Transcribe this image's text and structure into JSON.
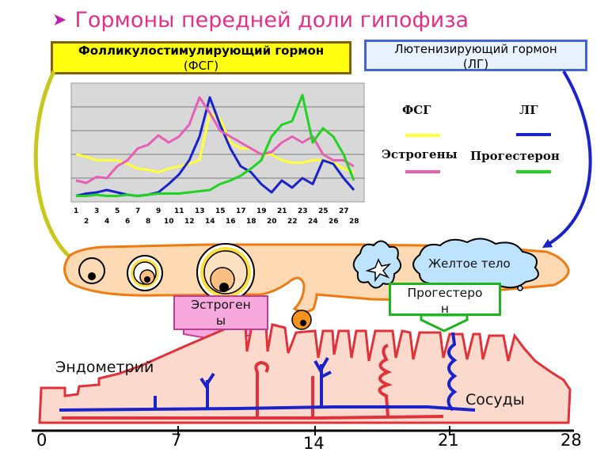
{
  "title": "Гормоны передней доли гипофиза",
  "boxes": {
    "fsh_line1": "Фолликулостимулирующий гормон",
    "fsh_line2": "(ФСГ)",
    "lh_line1": "Лютенизирующий гормон",
    "lh_line2": "(ЛГ)"
  },
  "legend": {
    "fsh": "ФСГ",
    "lh": "ЛГ",
    "estrogen": "Эстрогены",
    "progesterone": "Прогестерон"
  },
  "labels": {
    "corpus_luteum": "Желтое тело",
    "estrogen_box_line1": "Эстроген",
    "estrogen_box_line2": "ы",
    "progesterone_box_line1": "Прогестеро",
    "progesterone_box_line2": "н",
    "endometrium": "Эндометрий",
    "vessels": "Сосуды"
  },
  "timeline_days": [
    "0",
    "7",
    "14",
    "21",
    "28"
  ],
  "colors": {
    "fsh": "#ffff3a",
    "lh": "#1a23c9",
    "estrogen": "#e65fb4",
    "progesterone": "#20d320",
    "title": "#e0308a",
    "ovary_fill": "#fdd9b4",
    "ovary_stroke": "#f07a10",
    "endometrium_fill": "#fbd9cd",
    "endometrium_stroke": "#e0323a"
  },
  "chart_data": {
    "type": "line",
    "x_ticks_top": [
      "1",
      "3",
      "5",
      "7",
      "9",
      "11",
      "13",
      "15",
      "17",
      "19",
      "21",
      "23",
      "25",
      "27"
    ],
    "x_ticks_bottom": [
      "2",
      "4",
      "6",
      "8",
      "10",
      "12",
      "14",
      "16",
      "18",
      "20",
      "22",
      "24",
      "26",
      "28"
    ],
    "x": [
      1,
      2,
      3,
      4,
      5,
      6,
      7,
      8,
      9,
      10,
      11,
      12,
      13,
      14,
      15,
      16,
      17,
      18,
      19,
      20,
      21,
      22,
      23,
      24,
      25,
      26,
      27,
      28
    ],
    "grid": true,
    "ylim": [
      0,
      10
    ],
    "series": [
      {
        "name": "ФСГ",
        "values": [
          4.0,
          3.8,
          3.5,
          3.5,
          3.5,
          3.2,
          2.8,
          2.7,
          2.5,
          2.8,
          3.0,
          3.2,
          3.5,
          7.5,
          7.0,
          5.0,
          4.5,
          4.5,
          4.0,
          4.0,
          3.5,
          3.3,
          3.3,
          3.5,
          3.5,
          3.3,
          2.8,
          2.5
        ]
      },
      {
        "name": "ЛГ",
        "values": [
          0.5,
          0.7,
          0.8,
          1.0,
          0.8,
          0.6,
          0.5,
          0.6,
          0.8,
          1.5,
          2.3,
          3.5,
          5.5,
          8.8,
          6.5,
          4.5,
          3.0,
          2.5,
          1.5,
          0.8,
          1.8,
          1.2,
          2.0,
          1.5,
          3.5,
          3.2,
          2.0,
          1.0
        ]
      },
      {
        "name": "Эстрогены",
        "values": [
          1.8,
          1.6,
          2.1,
          2.0,
          3.0,
          3.5,
          4.5,
          4.8,
          5.6,
          5.0,
          5.5,
          6.5,
          8.8,
          7.5,
          6.0,
          5.5,
          5.0,
          4.5,
          4.0,
          4.2,
          5.0,
          5.5,
          5.0,
          5.5,
          4.0,
          3.5,
          3.5,
          3.0
        ]
      },
      {
        "name": "Прогестерон",
        "values": [
          0.5,
          0.5,
          0.6,
          0.5,
          0.5,
          0.6,
          0.5,
          0.6,
          0.7,
          0.7,
          0.7,
          0.8,
          0.9,
          1.0,
          1.5,
          1.8,
          2.2,
          2.8,
          3.5,
          5.5,
          6.5,
          6.8,
          9.0,
          5.0,
          6.2,
          5.5,
          4.0,
          1.8
        ]
      }
    ]
  }
}
